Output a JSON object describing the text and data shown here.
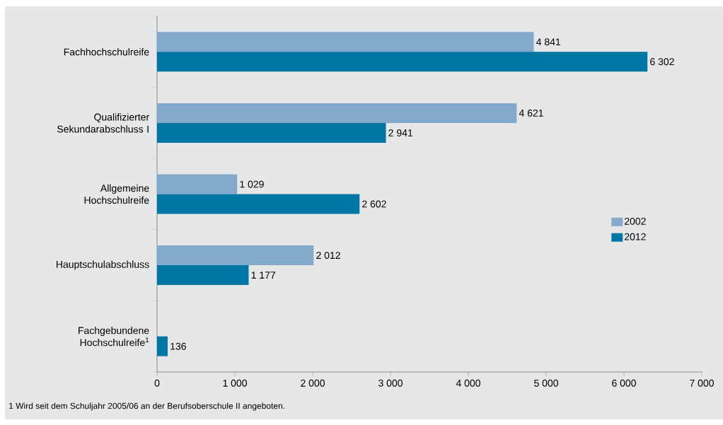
{
  "chart_data": {
    "type": "bar",
    "orientation": "horizontal",
    "categories": [
      "Fachhochschulreife",
      "Qualifizierter Sekundarabschluss I",
      "Allgemeine Hochschulreife",
      "Hauptschulabschluss",
      "Fachgebundene Hochschulreife$^{1}$"
    ],
    "series": [
      {
        "name": "2002",
        "color": "#84aacb",
        "values": [
          4841,
          4621,
          1029,
          2012,
          null
        ],
        "value_labels": [
          "4 841",
          "4 621",
          "1 029",
          "2 012",
          null
        ]
      },
      {
        "name": "2012",
        "color": "#0076a5",
        "values": [
          6302,
          2941,
          2602,
          1177,
          136
        ],
        "value_labels": [
          "6 302",
          "2 941",
          "2 602",
          "1 177",
          "136"
        ]
      }
    ],
    "xlim": [
      0,
      7000
    ],
    "xticks": [
      0,
      {
        "value": 1000,
        "label": "1 000"
      },
      {
        "value": 2000,
        "label": "2 000"
      },
      {
        "value": 3000,
        "label": "3 000"
      },
      {
        "value": 4000,
        "label": "4 000"
      },
      {
        "value": 5000,
        "label": "5 000"
      },
      {
        "value": 6000,
        "label": "6 000"
      },
      {
        "value": 7000,
        "label": "7 000"
      }
    ],
    "legend": "right",
    "grid": false,
    "annotations": [
      "1 Wird seit dem Schuljahr 2005/06 an der Berufsoberschule II angeboten."
    ]
  }
}
